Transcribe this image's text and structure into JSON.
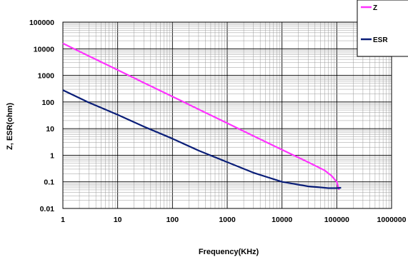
{
  "chart_data": {
    "type": "line",
    "title": "",
    "xlabel": "Frequency(KHz)",
    "ylabel": "Z, ESR(ohm)",
    "x_scale": "log",
    "y_scale": "log",
    "xlim": [
      1,
      1000000
    ],
    "ylim": [
      0.01,
      100000
    ],
    "x_ticks": [
      "1",
      "10",
      "100",
      "1000",
      "10000",
      "100000",
      "1000000"
    ],
    "y_ticks": [
      "100000",
      "10000",
      "1000",
      "100",
      "10",
      "1",
      "0.1",
      "0.01"
    ],
    "grid": true,
    "legend_position": "top-right",
    "series": [
      {
        "name": "Z",
        "color": "#ff33ff",
        "x": [
          1,
          3,
          10,
          30,
          100,
          300,
          1000,
          3000,
          10000,
          30000,
          60000,
          80000,
          100000,
          110000
        ],
        "y": [
          16000,
          5300,
          1600,
          530,
          160,
          53,
          16,
          5.3,
          1.6,
          0.55,
          0.27,
          0.17,
          0.1,
          0.05
        ]
      },
      {
        "name": "ESR",
        "color": "#0a1e78",
        "x": [
          1,
          3,
          10,
          30,
          100,
          300,
          1000,
          3000,
          10000,
          30000,
          70000,
          100000,
          120000
        ],
        "y": [
          280,
          95,
          33,
          12,
          4.2,
          1.5,
          0.55,
          0.22,
          0.1,
          0.068,
          0.058,
          0.058,
          0.06
        ]
      }
    ]
  }
}
